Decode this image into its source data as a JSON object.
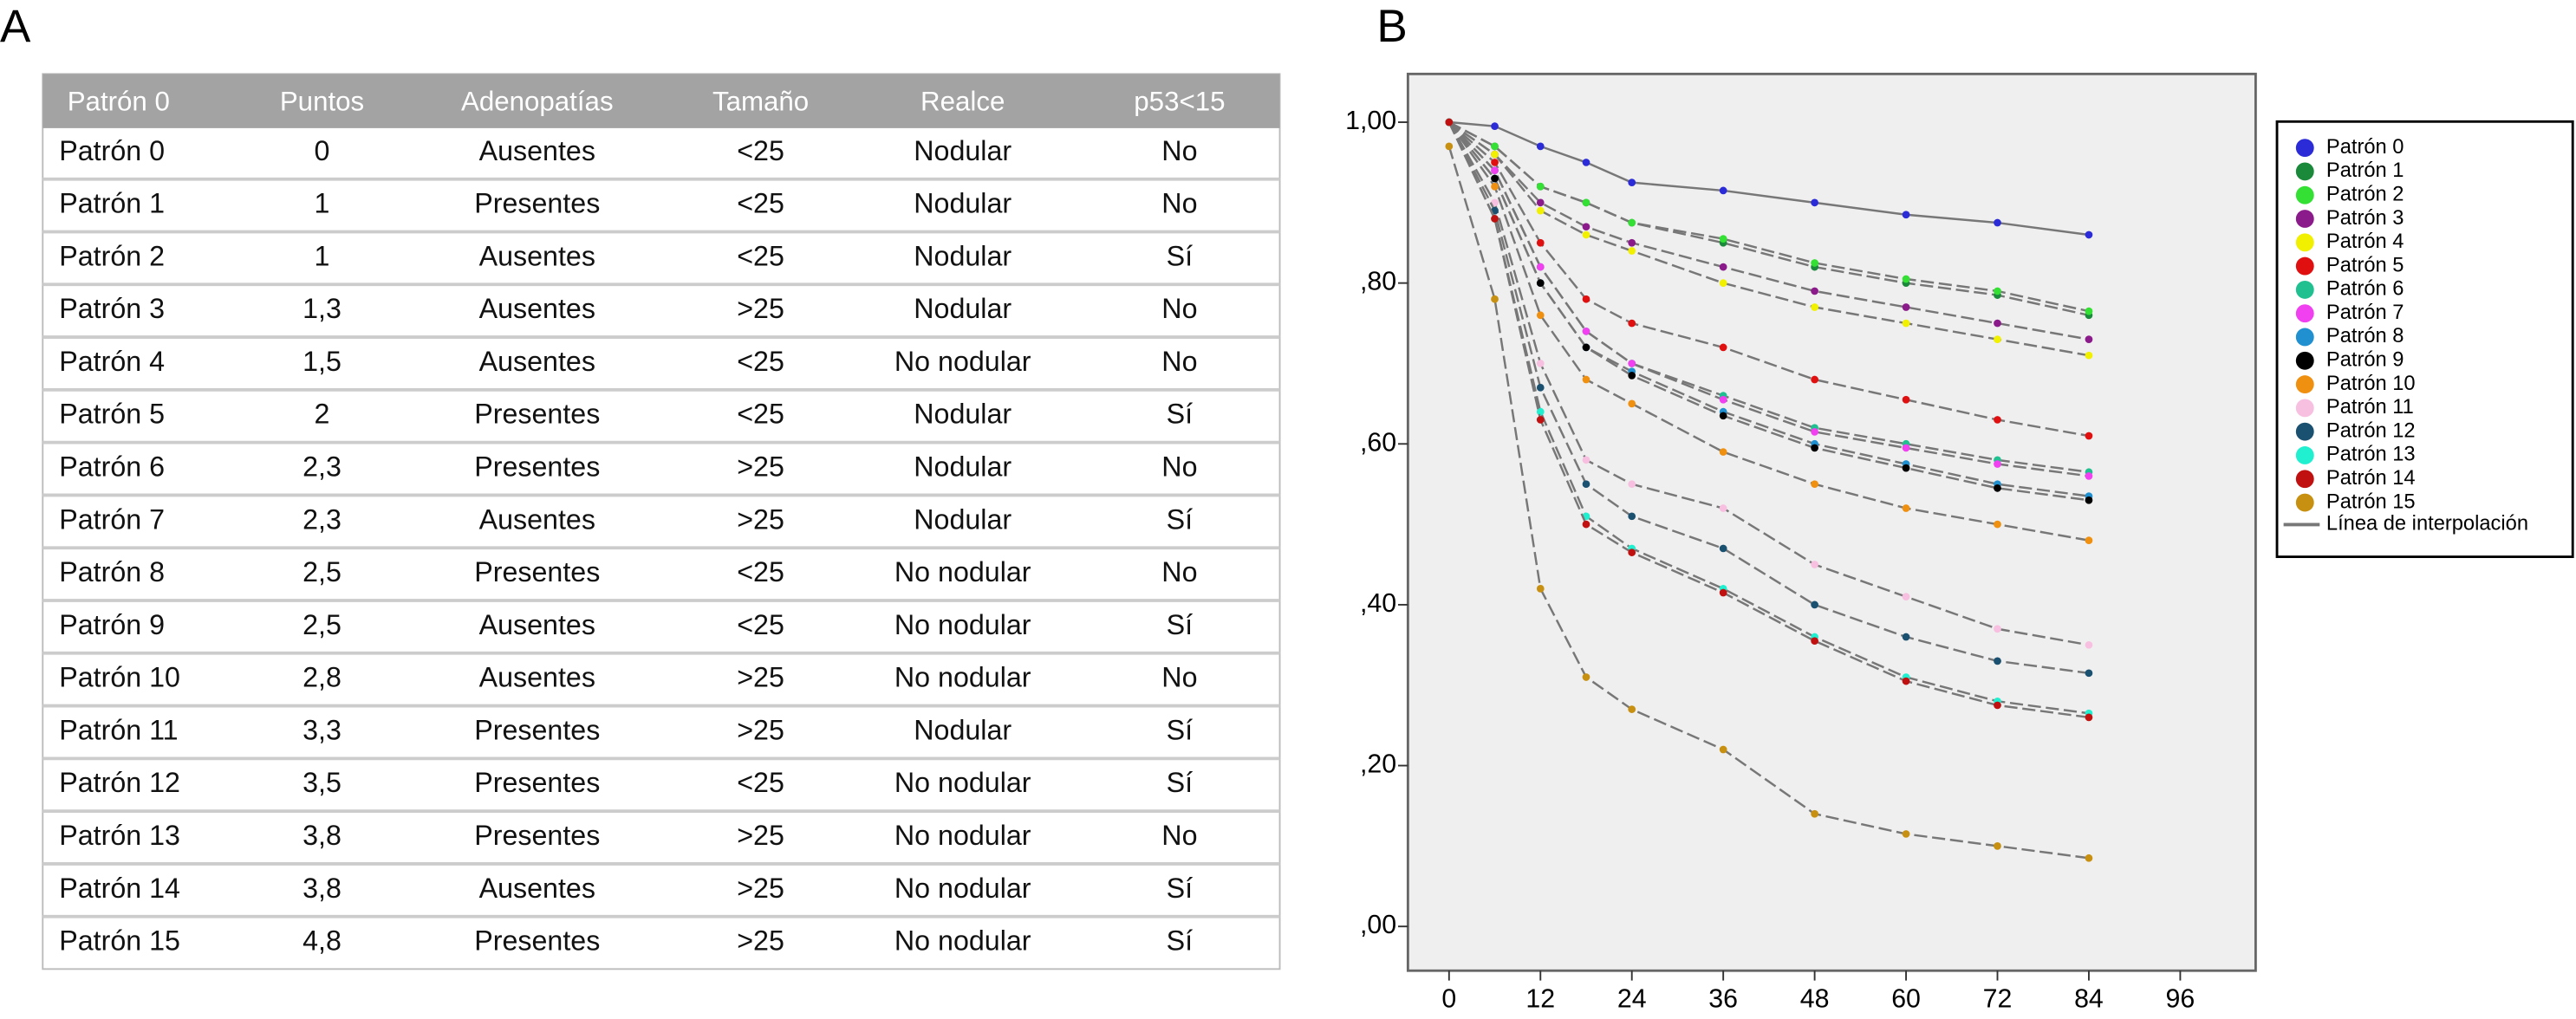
{
  "panels": [
    "A",
    "B"
  ],
  "table": {
    "columns": [
      "Patrón 0",
      "Puntos",
      "Adenopatías",
      "Tamaño",
      "Realce",
      "p53<15"
    ],
    "rows": [
      [
        "Patrón 0",
        "0",
        "Ausentes",
        "<25",
        "Nodular",
        "No"
      ],
      [
        "Patrón 1",
        "1",
        "Presentes",
        "<25",
        "Nodular",
        "No"
      ],
      [
        "Patrón 2",
        "1",
        "Ausentes",
        "<25",
        "Nodular",
        "Sí"
      ],
      [
        "Patrón 3",
        "1,3",
        "Ausentes",
        ">25",
        "Nodular",
        "No"
      ],
      [
        "Patrón 4",
        "1,5",
        "Ausentes",
        "<25",
        "No nodular",
        "No"
      ],
      [
        "Patrón 5",
        "2",
        "Presentes",
        "<25",
        "Nodular",
        "Sí"
      ],
      [
        "Patrón 6",
        "2,3",
        "Presentes",
        ">25",
        "Nodular",
        "No"
      ],
      [
        "Patrón 7",
        "2,3",
        "Ausentes",
        ">25",
        "Nodular",
        "Sí"
      ],
      [
        "Patrón 8",
        "2,5",
        "Presentes",
        "<25",
        "No nodular",
        "No"
      ],
      [
        "Patrón 9",
        "2,5",
        "Ausentes",
        "<25",
        "No nodular",
        "Sí"
      ],
      [
        "Patrón 10",
        "2,8",
        "Ausentes",
        ">25",
        "No nodular",
        "No"
      ],
      [
        "Patrón 11",
        "3,3",
        "Presentes",
        ">25",
        "Nodular",
        "Sí"
      ],
      [
        "Patrón 12",
        "3,5",
        "Presentes",
        "<25",
        "No nodular",
        "Sí"
      ],
      [
        "Patrón 13",
        "3,8",
        "Presentes",
        ">25",
        "No nodular",
        "No"
      ],
      [
        "Patrón 14",
        "3,8",
        "Ausentes",
        ">25",
        "No nodular",
        "Sí"
      ],
      [
        "Patrón 15",
        "4,8",
        "Presentes",
        ">25",
        "No nodular",
        "Sí"
      ]
    ]
  },
  "chart_data": {
    "type": "line",
    "x": [
      0,
      6,
      12,
      18,
      24,
      36,
      48,
      60,
      72,
      84
    ],
    "xlim": [
      -5.4,
      105.9
    ],
    "xticks": [
      0,
      12,
      24,
      36,
      48,
      60,
      72,
      84,
      96
    ],
    "ylim": [
      -0.055,
      1.06
    ],
    "yticks": [
      {
        "value": 0,
        "label": ",00"
      },
      {
        "value": 0.2,
        "label": ",20"
      },
      {
        "value": 0.4,
        "label": ",40"
      },
      {
        "value": 0.6,
        "label": ",60"
      },
      {
        "value": 0.8,
        "label": ",80"
      },
      {
        "value": 1,
        "label": "1,00"
      }
    ],
    "legend": "right",
    "interpolation_label": "Línea de interpolación",
    "interpolation_color": "#777777",
    "series": [
      {
        "name": "Patrón 0",
        "color": "#2b2bd8",
        "values": [
          1.0,
          0.995,
          0.97,
          0.95,
          0.925,
          0.915,
          0.9,
          0.885,
          0.875,
          0.86
        ]
      },
      {
        "name": "Patrón 1",
        "color": "#1a8a3a",
        "values": [
          1.0,
          0.97,
          0.92,
          0.9,
          0.875,
          0.85,
          0.82,
          0.8,
          0.785,
          0.76
        ]
      },
      {
        "name": "Patrón 2",
        "color": "#33e033",
        "values": [
          1.0,
          0.97,
          0.92,
          0.9,
          0.875,
          0.855,
          0.825,
          0.805,
          0.79,
          0.765
        ]
      },
      {
        "name": "Patrón 3",
        "color": "#8b1a8b",
        "values": [
          1.0,
          0.96,
          0.9,
          0.87,
          0.85,
          0.82,
          0.79,
          0.77,
          0.75,
          0.73
        ]
      },
      {
        "name": "Patrón 4",
        "color": "#f0f000",
        "values": [
          1.0,
          0.96,
          0.89,
          0.86,
          0.84,
          0.8,
          0.77,
          0.75,
          0.73,
          0.71
        ]
      },
      {
        "name": "Patrón 5",
        "color": "#e01010",
        "values": [
          1.0,
          0.95,
          0.85,
          0.78,
          0.75,
          0.72,
          0.68,
          0.655,
          0.63,
          0.61
        ]
      },
      {
        "name": "Patrón 6",
        "color": "#20c090",
        "values": [
          1.0,
          0.94,
          0.82,
          0.74,
          0.7,
          0.66,
          0.62,
          0.6,
          0.58,
          0.565
        ]
      },
      {
        "name": "Patrón 7",
        "color": "#f040f0",
        "values": [
          1.0,
          0.94,
          0.82,
          0.74,
          0.7,
          0.655,
          0.615,
          0.595,
          0.575,
          0.56
        ]
      },
      {
        "name": "Patrón 8",
        "color": "#2090d0",
        "values": [
          1.0,
          0.93,
          0.8,
          0.72,
          0.69,
          0.64,
          0.6,
          0.575,
          0.55,
          0.535
        ]
      },
      {
        "name": "Patrón 9",
        "color": "#000000",
        "values": [
          1.0,
          0.93,
          0.8,
          0.72,
          0.685,
          0.635,
          0.595,
          0.57,
          0.545,
          0.53
        ]
      },
      {
        "name": "Patrón 10",
        "color": "#f09010",
        "values": [
          1.0,
          0.92,
          0.76,
          0.68,
          0.65,
          0.59,
          0.55,
          0.52,
          0.5,
          0.48
        ]
      },
      {
        "name": "Patrón 11",
        "color": "#f8c0e0",
        "values": [
          1.0,
          0.9,
          0.7,
          0.58,
          0.55,
          0.52,
          0.45,
          0.41,
          0.37,
          0.35
        ]
      },
      {
        "name": "Patrón 12",
        "color": "#1a5070",
        "values": [
          1.0,
          0.89,
          0.67,
          0.55,
          0.51,
          0.47,
          0.4,
          0.36,
          0.33,
          0.315
        ]
      },
      {
        "name": "Patrón 13",
        "color": "#20f0d0",
        "values": [
          1.0,
          0.88,
          0.64,
          0.51,
          0.47,
          0.42,
          0.36,
          0.31,
          0.28,
          0.265
        ]
      },
      {
        "name": "Patrón 14",
        "color": "#c01010",
        "values": [
          1.0,
          0.88,
          0.63,
          0.5,
          0.465,
          0.415,
          0.355,
          0.305,
          0.275,
          0.26
        ]
      },
      {
        "name": "Patrón 15",
        "color": "#c89010",
        "values": [
          0.97,
          0.78,
          0.42,
          0.31,
          0.27,
          0.22,
          0.14,
          0.115,
          0.1,
          0.085
        ]
      }
    ]
  }
}
